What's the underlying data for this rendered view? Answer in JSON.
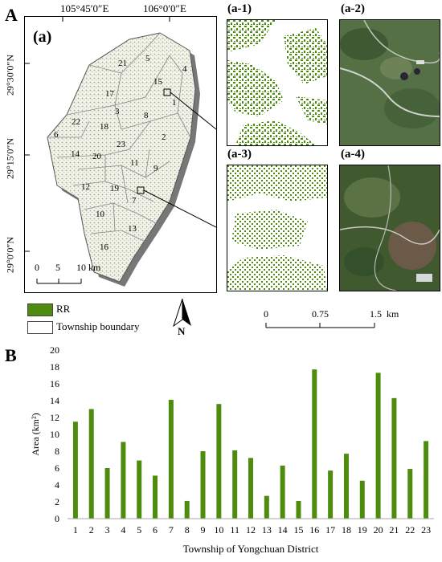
{
  "panel_a": {
    "letter": "A",
    "inset_label": "(a)",
    "lon_labels": [
      "105°45′0″E",
      "106°0′0″E"
    ],
    "lat_labels": [
      "29°30′0″N",
      "29°15′0″N",
      "29°0′0″N"
    ],
    "township_numbers": [
      "21",
      "5",
      "4",
      "17",
      "15",
      "1",
      "3",
      "8",
      "22",
      "18",
      "6",
      "2",
      "14",
      "20",
      "23",
      "11",
      "9",
      "12",
      "19",
      "7",
      "10",
      "13",
      "16"
    ],
    "scale_bar": {
      "ticks": [
        "0",
        "5",
        "10 km"
      ]
    },
    "sub_panels": [
      {
        "label": "(a-1)"
      },
      {
        "label": "(a-2)"
      },
      {
        "label": "(a-3)"
      },
      {
        "label": "(a-4)"
      }
    ],
    "legend": [
      {
        "label": "RR",
        "color": "#4e8c0e"
      },
      {
        "label": "Township boundary",
        "color": "#ffffff"
      }
    ],
    "north_label": "N",
    "sub_scale": {
      "ticks": [
        "0",
        "0.75",
        "1.5  km"
      ]
    }
  },
  "panel_b": {
    "letter": "B"
  },
  "chart_data": {
    "type": "bar",
    "xlabel": "Township of Yongchuan District",
    "ylabel": "Area (km²)",
    "ylim": [
      0,
      20
    ],
    "yticks": [
      "0",
      "2",
      "4",
      "6",
      "8",
      "10",
      "12",
      "14",
      "16",
      "18",
      "20"
    ],
    "categories": [
      "1",
      "2",
      "3",
      "4",
      "5",
      "6",
      "7",
      "8",
      "9",
      "10",
      "11",
      "12",
      "13",
      "14",
      "15",
      "16",
      "17",
      "18",
      "19",
      "20",
      "21",
      "22",
      "23"
    ],
    "values": [
      11.5,
      13.0,
      6.0,
      9.1,
      6.9,
      5.1,
      14.1,
      2.1,
      8.0,
      13.6,
      8.1,
      7.2,
      2.7,
      6.3,
      2.1,
      17.7,
      5.7,
      7.7,
      4.5,
      17.3,
      14.3,
      5.9,
      9.2
    ],
    "bar_color": "#4e8c0e",
    "grid": false
  }
}
